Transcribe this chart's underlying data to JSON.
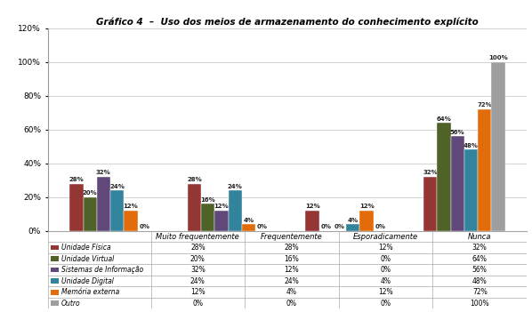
{
  "title": "Gráfico 4  –  Uso dos meios de armazenamento do conhecimento explícito",
  "categories": [
    "Muito frequentemente",
    "Frequentemente",
    "Esporadicamente",
    "Nunca"
  ],
  "series": [
    {
      "label": "Unidade Física",
      "values": [
        28,
        28,
        12,
        32
      ],
      "color": "#943634"
    },
    {
      "label": "Unidade Virtual",
      "values": [
        20,
        16,
        0,
        64
      ],
      "color": "#4f6228"
    },
    {
      "label": "Sistemas de Informação",
      "values": [
        32,
        12,
        0,
        56
      ],
      "color": "#60497a"
    },
    {
      "label": "Unidade Digital",
      "values": [
        24,
        24,
        4,
        48
      ],
      "color": "#31849b"
    },
    {
      "label": "Memória externa",
      "values": [
        12,
        4,
        12,
        72
      ],
      "color": "#e26b0a"
    },
    {
      "label": "Outro",
      "values": [
        0,
        0,
        0,
        100
      ],
      "color": "#9e9e9e"
    }
  ],
  "ylim": [
    0,
    120
  ],
  "yticks": [
    0,
    20,
    40,
    60,
    80,
    100,
    120
  ],
  "ytick_labels": [
    "0%",
    "20%",
    "40%",
    "60%",
    "80%",
    "100%",
    "120%"
  ],
  "bar_width": 0.115,
  "label_fontsize": 5.0,
  "axis_fontsize": 6.5,
  "title_fontsize": 7.5,
  "table_fontsize": 5.5,
  "table_header_fontsize": 6.0,
  "background_color": "#ffffff",
  "grid_color": "#c0c0c0",
  "table_line_color": "#aaaaaa"
}
